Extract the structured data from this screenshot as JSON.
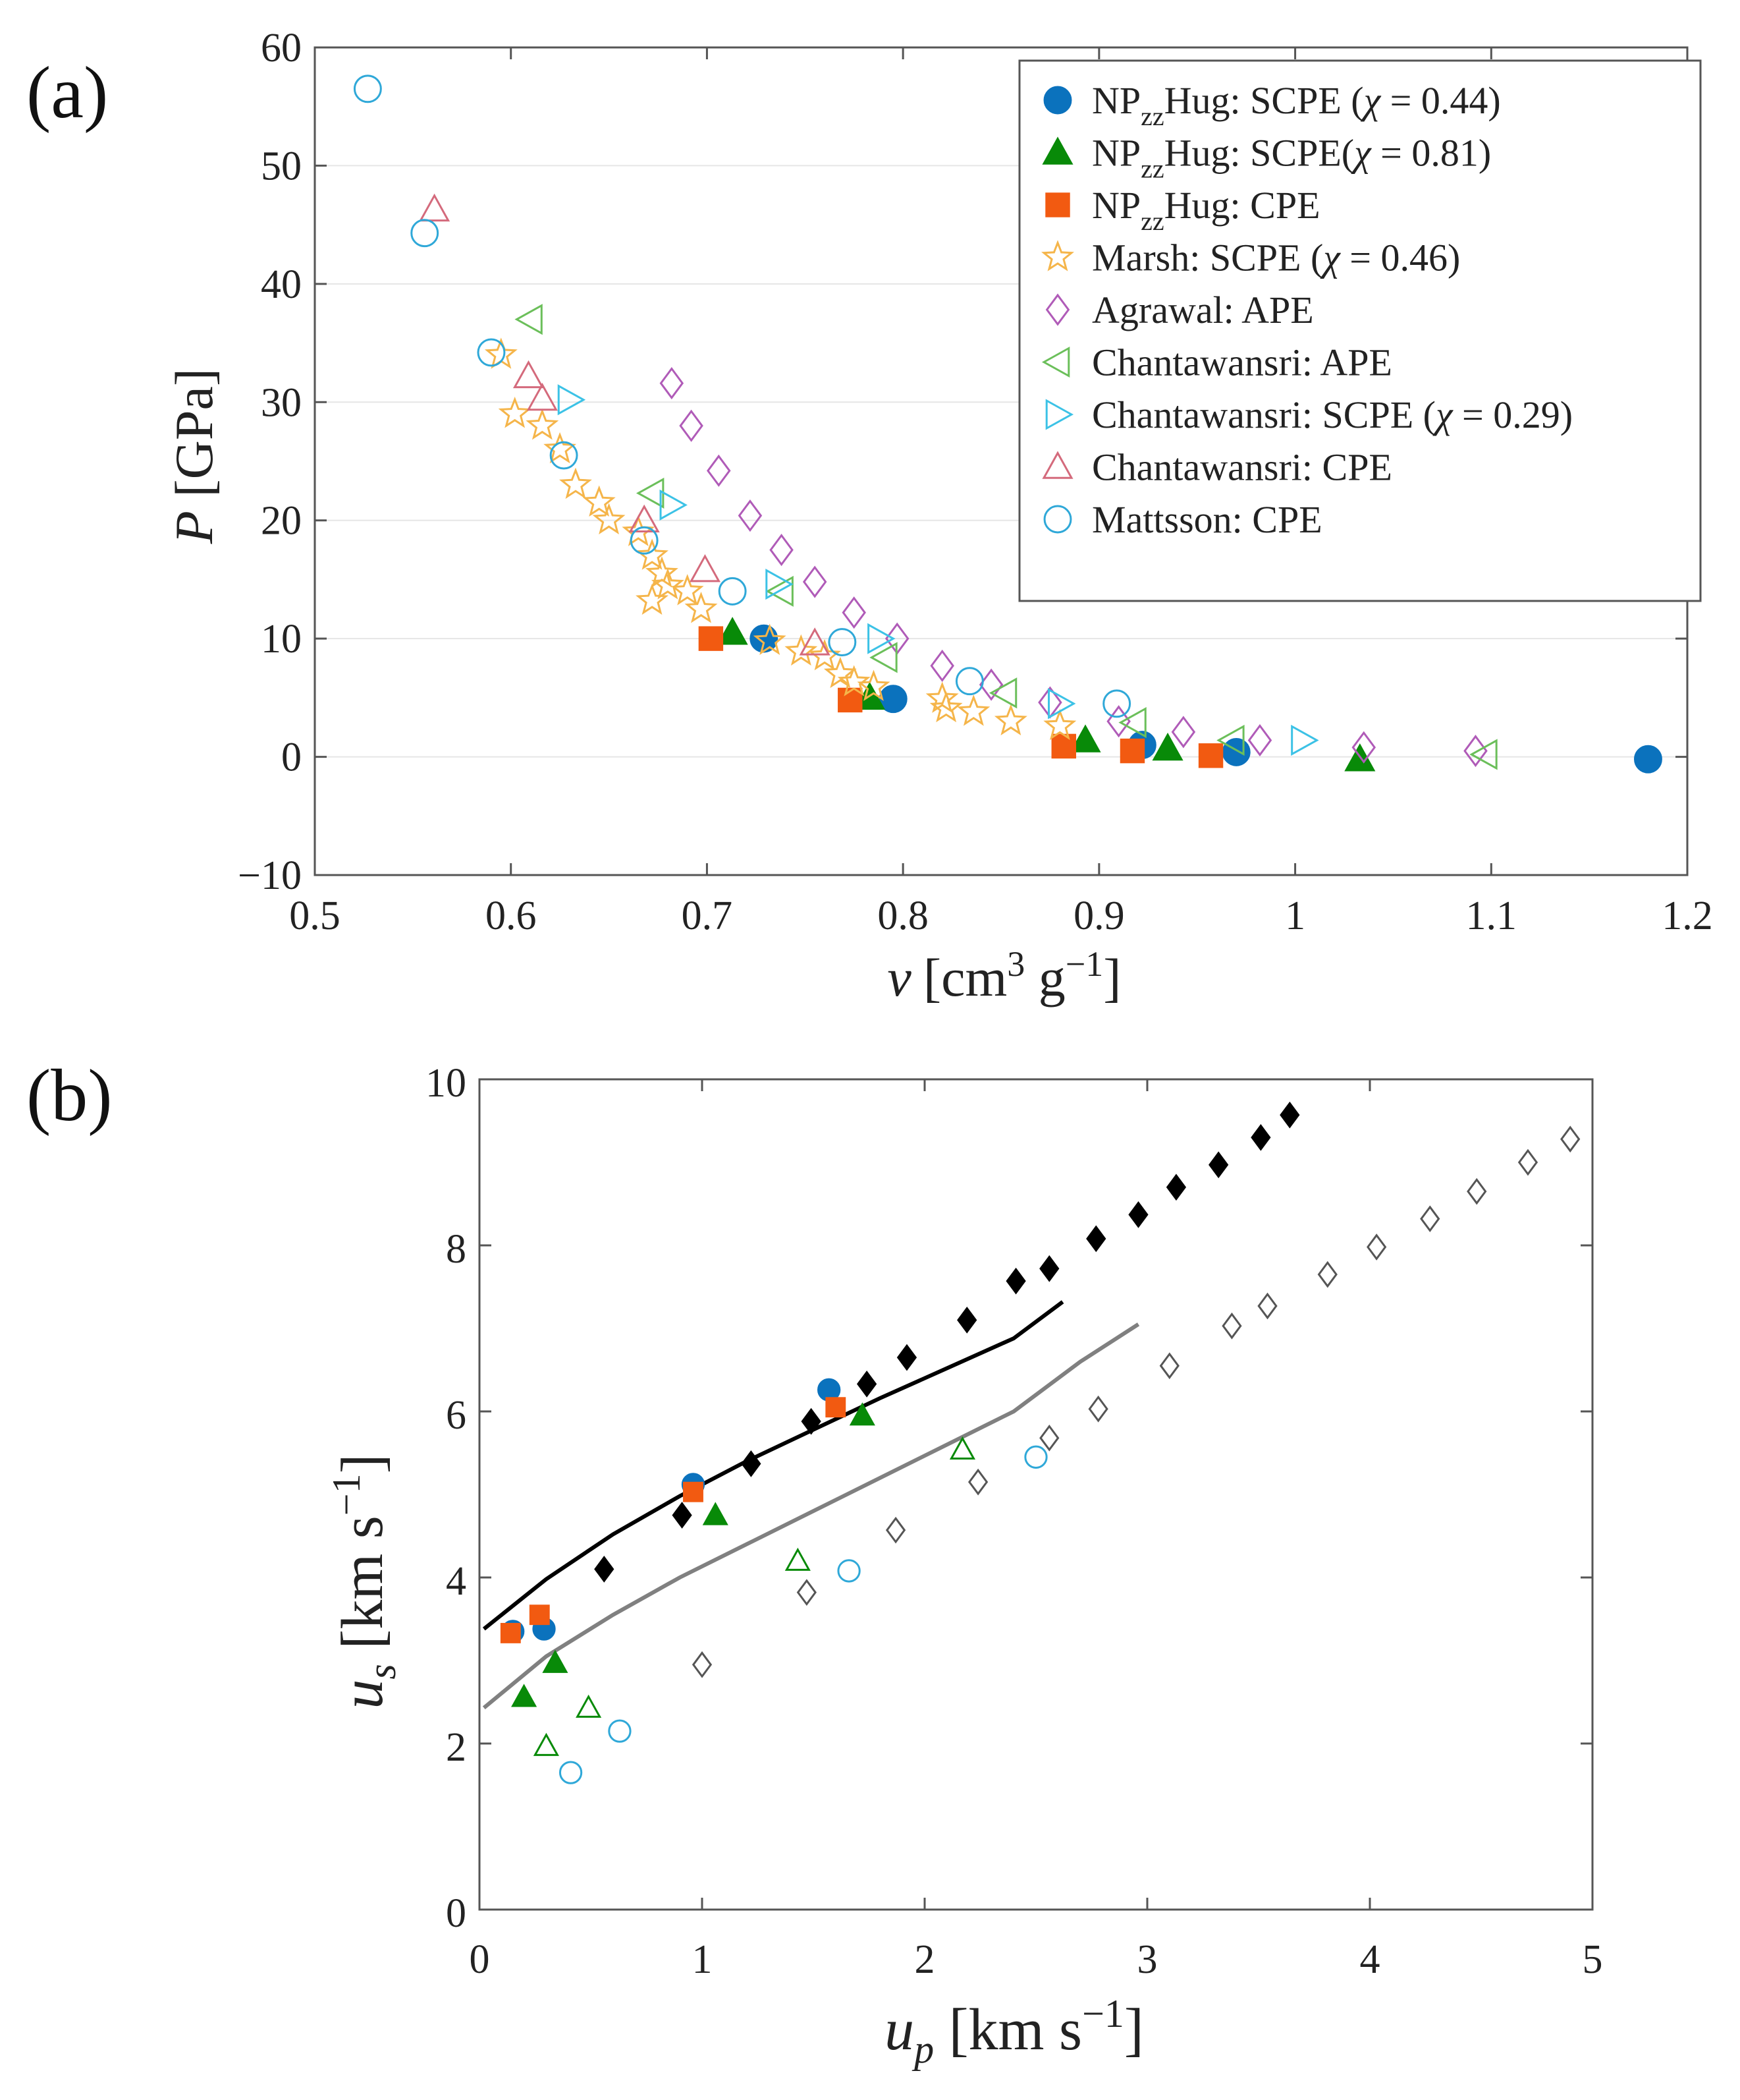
{
  "colors": {
    "np_blue": "#0B72BD",
    "np_green": "#088A08",
    "np_orange": "#F25A11",
    "marsh_yellow": "#F5B54A",
    "agrawal_purple": "#B05BB8",
    "chant_ape_green": "#6BBF5A",
    "chant_scpe_cyan": "#3CC2E6",
    "chant_cpe_red": "#D46A7C",
    "mattsson_cyan": "#2FA8D8",
    "black": "#000000",
    "grey_fit": "#808080",
    "grey_diamond": "#555555"
  },
  "chart_data": [
    {
      "id": "a",
      "type": "scatter",
      "panel_label": "(a)",
      "xlabel": "v [cm^3 g^-1]",
      "ylabel": "P [GPa]",
      "xlabel_parts": {
        "var": "v",
        "open": "[cm",
        "sup1": "3",
        "mid": " g",
        "sup2": "−1",
        "close": "]"
      },
      "ylabel_parts": {
        "var": "P",
        "rest": " [GPa]"
      },
      "xlim": [
        0.5,
        1.2
      ],
      "ylim": [
        -10,
        60
      ],
      "xticks": [
        0.5,
        0.6,
        0.7,
        0.8,
        0.9,
        1.0,
        1.1,
        1.2
      ],
      "xtick_labels": [
        "0.5",
        "0.6",
        "0.7",
        "0.8",
        "0.9",
        "1",
        "1.1",
        "1.2"
      ],
      "yticks": [
        -10,
        0,
        10,
        20,
        30,
        40,
        50,
        60
      ],
      "ytick_labels": [
        "−10",
        "0",
        "10",
        "20",
        "30",
        "40",
        "50",
        "60"
      ],
      "grid": "horizontal",
      "legend_position": "top-right",
      "series": [
        {
          "name": "NP_zz Hug: SCPE (χ = 0.44)",
          "legend_parts": {
            "a": "NP",
            "sub": "zz",
            "b": "Hug: SCPE (",
            "chi": "χ",
            "c": " = 0.44)"
          },
          "marker": "circle",
          "filled": true,
          "color": "#0B72BD",
          "points": [
            [
              0.729,
              10.0
            ],
            [
              0.795,
              4.9
            ],
            [
              0.922,
              1.0
            ],
            [
              0.97,
              0.4
            ],
            [
              1.18,
              -0.2
            ]
          ]
        },
        {
          "name": "NP_zz Hug: SCPE(χ = 0.81)",
          "legend_parts": {
            "a": "NP",
            "sub": "zz",
            "b": "Hug: SCPE(",
            "chi": "χ",
            "c": " = 0.81)"
          },
          "marker": "triangle-up",
          "filled": true,
          "color": "#088A08",
          "points": [
            [
              0.713,
              10.5
            ],
            [
              0.783,
              5.0
            ],
            [
              0.893,
              1.4
            ],
            [
              0.935,
              0.7
            ],
            [
              1.033,
              -0.2
            ]
          ]
        },
        {
          "name": "NP_zz Hug: CPE",
          "legend_parts": {
            "a": "NP",
            "sub": "zz",
            "b": "Hug: CPE",
            "chi": "",
            "c": ""
          },
          "marker": "square",
          "filled": true,
          "color": "#F25A11",
          "points": [
            [
              0.702,
              10.0
            ],
            [
              0.773,
              4.8
            ],
            [
              0.882,
              0.9
            ],
            [
              0.917,
              0.5
            ],
            [
              0.957,
              0.1
            ]
          ]
        },
        {
          "name": "Marsh: SCPE (χ = 0.46)",
          "legend_parts": {
            "a": "Marsh: SCPE (",
            "sub": "",
            "b": "",
            "chi": "χ",
            "c": " = 0.46)"
          },
          "marker": "star",
          "filled": false,
          "color": "#F5B54A",
          "points": [
            [
              0.595,
              34.0
            ],
            [
              0.602,
              29.0
            ],
            [
              0.616,
              28.0
            ],
            [
              0.625,
              26.0
            ],
            [
              0.633,
              23.0
            ],
            [
              0.645,
              21.5
            ],
            [
              0.65,
              20.0
            ],
            [
              0.665,
              19.0
            ],
            [
              0.672,
              17.0
            ],
            [
              0.677,
              15.5
            ],
            [
              0.68,
              14.5
            ],
            [
              0.672,
              13.2
            ],
            [
              0.69,
              14.0
            ],
            [
              0.697,
              12.5
            ],
            [
              0.732,
              9.8
            ],
            [
              0.748,
              8.9
            ],
            [
              0.76,
              8.5
            ],
            [
              0.768,
              7.0
            ],
            [
              0.775,
              6.3
            ],
            [
              0.785,
              5.9
            ],
            [
              0.82,
              4.9
            ],
            [
              0.822,
              4.1
            ],
            [
              0.836,
              3.8
            ],
            [
              0.855,
              3.0
            ],
            [
              0.88,
              2.6
            ]
          ]
        },
        {
          "name": "Agrawal: APE",
          "legend_parts": {
            "a": "Agrawal: APE",
            "sub": "",
            "b": "",
            "chi": "",
            "c": ""
          },
          "marker": "diamond",
          "filled": false,
          "color": "#B05BB8",
          "points": [
            [
              0.682,
              31.6
            ],
            [
              0.692,
              28.0
            ],
            [
              0.706,
              24.2
            ],
            [
              0.722,
              20.4
            ],
            [
              0.738,
              17.5
            ],
            [
              0.755,
              14.8
            ],
            [
              0.775,
              12.2
            ],
            [
              0.797,
              10.0
            ],
            [
              0.82,
              7.7
            ],
            [
              0.845,
              6.1
            ],
            [
              0.875,
              4.6
            ],
            [
              0.91,
              3.0
            ],
            [
              0.943,
              2.1
            ],
            [
              0.982,
              1.4
            ],
            [
              1.035,
              0.8
            ],
            [
              1.092,
              0.5
            ]
          ]
        },
        {
          "name": "Chantawansri: APE",
          "legend_parts": {
            "a": "Chantawansri: APE",
            "sub": "",
            "b": "",
            "chi": "",
            "c": ""
          },
          "marker": "triangle-left",
          "filled": false,
          "color": "#6BBF5A",
          "points": [
            [
              0.61,
              37.0
            ],
            [
              0.672,
              22.3
            ],
            [
              0.738,
              14.0
            ],
            [
              0.791,
              8.4
            ],
            [
              0.852,
              5.4
            ],
            [
              0.918,
              2.9
            ],
            [
              0.968,
              1.4
            ],
            [
              1.097,
              0.2
            ]
          ]
        },
        {
          "name": "Chantawansri: SCPE (χ = 0.29)",
          "legend_parts": {
            "a": "Chantawansri: SCPE (",
            "sub": "",
            "b": "",
            "chi": "χ",
            "c": " = 0.29)"
          },
          "marker": "triangle-right",
          "filled": false,
          "color": "#3CC2E6",
          "points": [
            [
              0.63,
              30.2
            ],
            [
              0.682,
              21.3
            ],
            [
              0.736,
              14.6
            ],
            [
              0.788,
              10.0
            ],
            [
              0.88,
              4.5
            ],
            [
              1.004,
              1.4
            ]
          ]
        },
        {
          "name": "Chantawansri: CPE",
          "legend_parts": {
            "a": "Chantawansri: CPE",
            "sub": "",
            "b": "",
            "chi": "",
            "c": ""
          },
          "marker": "triangle-up",
          "filled": false,
          "color": "#D46A7C",
          "points": [
            [
              0.561,
              46.3
            ],
            [
              0.609,
              32.2
            ],
            [
              0.616,
              30.3
            ],
            [
              0.668,
              20.0
            ],
            [
              0.699,
              15.8
            ],
            [
              0.755,
              9.6
            ]
          ]
        },
        {
          "name": "Mattsson: CPE",
          "legend_parts": {
            "a": "Mattsson: CPE",
            "sub": "",
            "b": "",
            "chi": "",
            "c": ""
          },
          "marker": "circle",
          "filled": false,
          "color": "#2FA8D8",
          "points": [
            [
              0.527,
              56.5
            ],
            [
              0.556,
              44.3
            ],
            [
              0.59,
              34.2
            ],
            [
              0.627,
              25.5
            ],
            [
              0.668,
              18.3
            ],
            [
              0.713,
              14.0
            ],
            [
              0.769,
              9.7
            ],
            [
              0.834,
              6.4
            ],
            [
              0.909,
              4.5
            ]
          ]
        }
      ]
    },
    {
      "id": "b",
      "type": "scatter",
      "panel_label": "(b)",
      "xlabel": "u_p [km s^-1]",
      "ylabel": "u_s [km s^-1]",
      "xlabel_parts": {
        "var": "u",
        "sub": "p",
        "open": " [km s",
        "sup": "−1",
        "close": "]"
      },
      "ylabel_parts": {
        "var": "u",
        "sub": "s",
        "open": " [km s",
        "sup": "−1",
        "close": "]"
      },
      "xlim": [
        0,
        5
      ],
      "ylim": [
        0,
        10
      ],
      "xticks": [
        0,
        1,
        2,
        3,
        4,
        5
      ],
      "xtick_labels": [
        "0",
        "1",
        "2",
        "3",
        "4",
        "5"
      ],
      "yticks": [
        0,
        2,
        4,
        6,
        8,
        10
      ],
      "ytick_labels": [
        "0",
        "2",
        "4",
        "6",
        "8",
        "10"
      ],
      "grid": "none",
      "series": [
        {
          "name": "NP_zz Hug: SCPE (χ = 0.44)",
          "marker": "circle",
          "filled": true,
          "color": "#0B72BD",
          "points": [
            [
              0.15,
              3.35
            ],
            [
              0.29,
              3.38
            ],
            [
              0.96,
              5.12
            ],
            [
              1.57,
              6.26
            ]
          ]
        },
        {
          "name": "NP_zz Hug: SCPE(χ = 0.81)",
          "marker": "triangle-up",
          "filled": true,
          "color": "#088A08",
          "points": [
            [
              0.2,
              2.56
            ],
            [
              0.34,
              2.97
            ],
            [
              1.06,
              4.75
            ],
            [
              1.72,
              5.95
            ]
          ]
        },
        {
          "name": "NP_zz Hug: CPE",
          "marker": "square",
          "filled": true,
          "color": "#F25A11",
          "points": [
            [
              0.14,
              3.33
            ],
            [
              0.27,
              3.55
            ],
            [
              0.96,
              5.03
            ],
            [
              1.6,
              6.05
            ]
          ]
        },
        {
          "name": "open triangles (green)",
          "marker": "triangle-up",
          "filled": false,
          "color": "#088A08",
          "points": [
            [
              0.3,
              1.97
            ],
            [
              0.49,
              2.43
            ],
            [
              1.43,
              4.2
            ],
            [
              2.17,
              5.54
            ]
          ]
        },
        {
          "name": "open circles (cyan)",
          "marker": "circle",
          "filled": false,
          "color": "#2FA8D8",
          "points": [
            [
              0.41,
              1.65
            ],
            [
              0.63,
              2.15
            ],
            [
              1.66,
              4.08
            ],
            [
              2.5,
              5.45
            ]
          ]
        },
        {
          "name": "filled diamonds (black)",
          "marker": "diamond",
          "filled": true,
          "color": "#000000",
          "points": [
            [
              0.56,
              4.1
            ],
            [
              0.91,
              4.75
            ],
            [
              1.22,
              5.37
            ],
            [
              1.49,
              5.88
            ],
            [
              1.74,
              6.33
            ],
            [
              1.92,
              6.65
            ],
            [
              2.19,
              7.1
            ],
            [
              2.41,
              7.57
            ],
            [
              2.56,
              7.72
            ],
            [
              2.77,
              8.08
            ],
            [
              2.96,
              8.37
            ],
            [
              3.13,
              8.7
            ],
            [
              3.32,
              8.97
            ],
            [
              3.51,
              9.3
            ],
            [
              3.64,
              9.57
            ]
          ]
        },
        {
          "name": "open diamonds (grey)",
          "marker": "diamond",
          "filled": false,
          "color": "#555555",
          "points": [
            [
              1.0,
              2.95
            ],
            [
              1.47,
              3.82
            ],
            [
              1.87,
              4.57
            ],
            [
              2.24,
              5.15
            ],
            [
              2.56,
              5.68
            ],
            [
              2.78,
              6.03
            ],
            [
              3.1,
              6.55
            ],
            [
              3.38,
              7.03
            ],
            [
              3.54,
              7.27
            ],
            [
              3.81,
              7.65
            ],
            [
              4.03,
              7.98
            ],
            [
              4.27,
              8.32
            ],
            [
              4.48,
              8.65
            ],
            [
              4.71,
              9.0
            ],
            [
              4.9,
              9.28
            ]
          ]
        }
      ],
      "fit_lines": [
        {
          "name": "black fit",
          "color": "#000000",
          "points": [
            [
              0.02,
              3.38
            ],
            [
              0.3,
              3.98
            ],
            [
              0.6,
              4.52
            ],
            [
              0.9,
              4.98
            ],
            [
              1.2,
              5.4
            ],
            [
              1.5,
              5.78
            ],
            [
              1.8,
              6.16
            ],
            [
              2.1,
              6.52
            ],
            [
              2.4,
              6.88
            ],
            [
              2.62,
              7.32
            ]
          ]
        },
        {
          "name": "grey fit",
          "color": "#808080",
          "points": [
            [
              0.02,
              2.43
            ],
            [
              0.3,
              3.05
            ],
            [
              0.6,
              3.55
            ],
            [
              0.9,
              4.0
            ],
            [
              1.2,
              4.4
            ],
            [
              1.5,
              4.8
            ],
            [
              1.8,
              5.2
            ],
            [
              2.1,
              5.6
            ],
            [
              2.4,
              6.0
            ],
            [
              2.7,
              6.6
            ],
            [
              2.96,
              7.05
            ]
          ]
        }
      ]
    }
  ]
}
